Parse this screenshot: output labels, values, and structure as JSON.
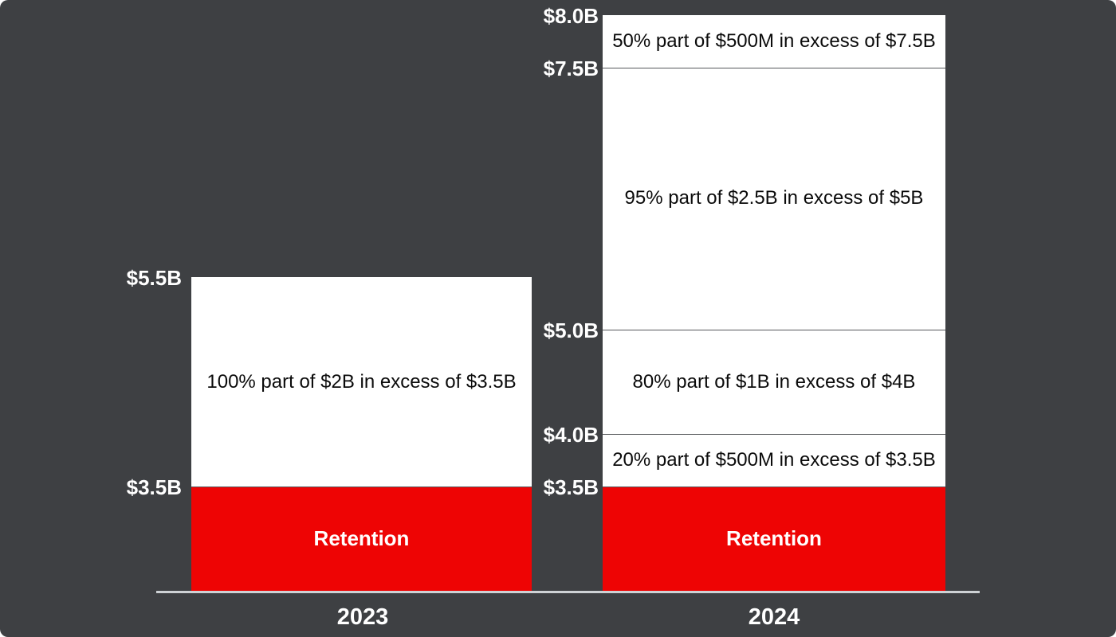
{
  "meta": {
    "background_color": "#3e4043",
    "retention_color": "#ee0404",
    "layer_fill_color": "#ffffff",
    "separator_color": "#56585b",
    "axis_line_color": "#ced2d5",
    "tick_text_color": "#ffffff",
    "segment_text_color": "#0b0b0b"
  },
  "chart_data": {
    "type": "bar",
    "subtype": "stacked-reinsurance-layer-towers",
    "unit": "USD billions",
    "title": "",
    "xlabel": "",
    "ylabel": "",
    "grid": false,
    "legend": "none",
    "categories": [
      "2023",
      "2024"
    ],
    "retention_note": "Retention segment drawn not to scale (0 to 3.5B compressed)",
    "bars": [
      {
        "category": "2023",
        "total_top_value": 5.5,
        "ticks": [
          {
            "label": "$5.5B",
            "value": 5.5
          },
          {
            "label": "$3.5B",
            "value": 3.5
          }
        ],
        "segments": [
          {
            "label": "Retention",
            "from": 0,
            "to": 3.5,
            "fill": "red"
          },
          {
            "label": "100% part of $2B in excess of $3.5B",
            "from": 3.5,
            "to": 5.5,
            "fill": "white"
          }
        ]
      },
      {
        "category": "2024",
        "total_top_value": 8.0,
        "ticks": [
          {
            "label": "$8.0B",
            "value": 8.0
          },
          {
            "label": "$7.5B",
            "value": 7.5
          },
          {
            "label": "$5.0B",
            "value": 5.0
          },
          {
            "label": "$4.0B",
            "value": 4.0
          },
          {
            "label": "$3.5B",
            "value": 3.5
          }
        ],
        "segments": [
          {
            "label": "Retention",
            "from": 0,
            "to": 3.5,
            "fill": "red"
          },
          {
            "label": "20% part of $500M in excess of $3.5B",
            "from": 3.5,
            "to": 4.0,
            "fill": "white"
          },
          {
            "label": "80% part of $1B in excess of $4B",
            "from": 4.0,
            "to": 5.0,
            "fill": "white"
          },
          {
            "label": "95% part of $2.5B in excess of $5B",
            "from": 5.0,
            "to": 7.5,
            "fill": "white"
          },
          {
            "label": "50% part of $500M in excess of $7.5B",
            "from": 7.5,
            "to": 8.0,
            "fill": "white"
          }
        ]
      }
    ]
  }
}
